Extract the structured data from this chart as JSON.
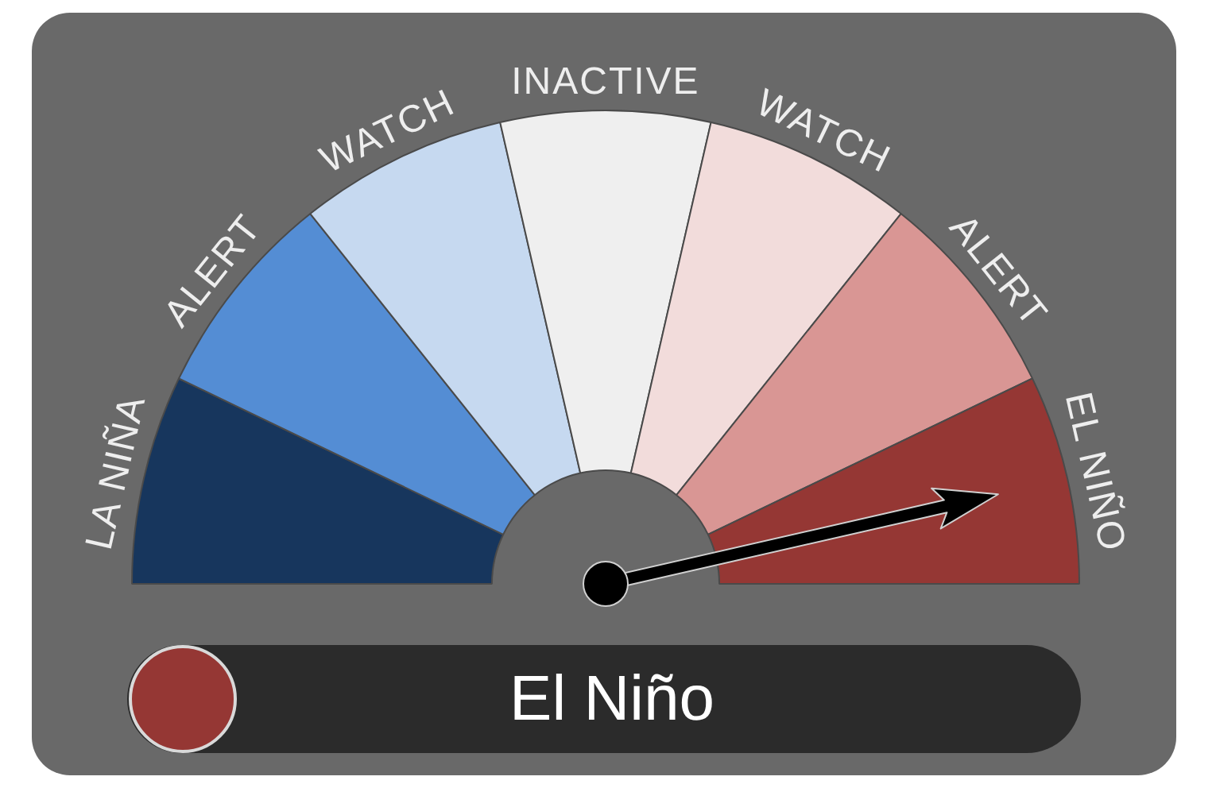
{
  "chart_data": {
    "type": "donut",
    "categories": [
      "LA NIÑA",
      "ALERT",
      "WATCH",
      "INACTIVE",
      "WATCH",
      "ALERT",
      "EL NIÑO"
    ],
    "values": [
      14.28,
      14.29,
      14.28,
      14.29,
      14.29,
      14.28,
      14.29
    ],
    "colors": [
      "#17365d",
      "#548dd4",
      "#c6d9f0",
      "#efefef",
      "#f2dcdb",
      "#d99694",
      "#953734"
    ],
    "needle": "EL NIÑO",
    "annotations": [
      "El Niño"
    ]
  }
}
